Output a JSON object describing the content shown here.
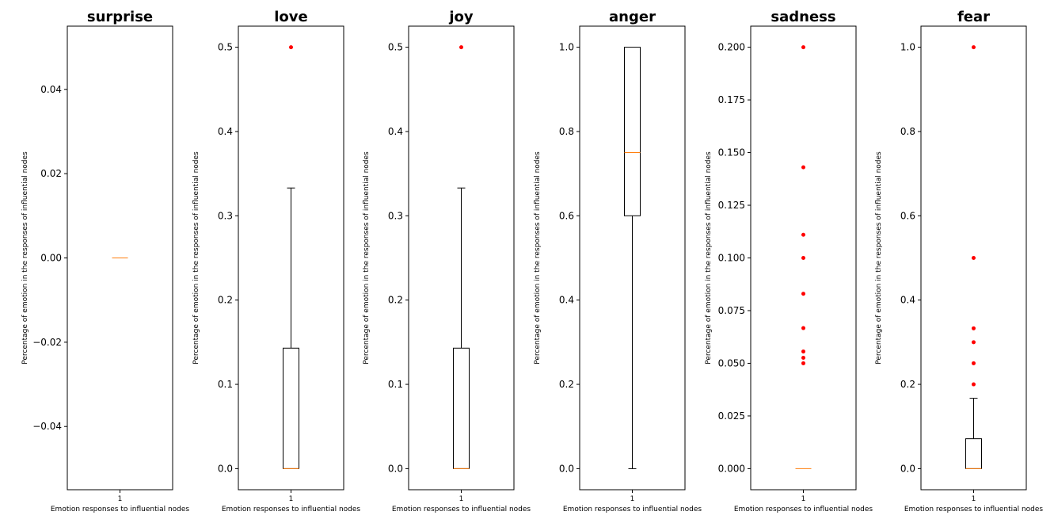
{
  "chart_data": [
    {
      "type": "box",
      "title": "surprise",
      "xlabel": "Emotion responses to influential nodes",
      "ylabel": "Percentage of emotion in the responses of influential nodes",
      "categories": [
        "1"
      ],
      "ylim": [
        -0.055,
        0.055
      ],
      "yticks": [
        -0.04,
        -0.02,
        0.0,
        0.02,
        0.04
      ],
      "ytick_labels": [
        "−0.04",
        "−0.02",
        "0.00",
        "0.02",
        "0.04"
      ],
      "box": {
        "whisker_low": 0,
        "q1": 0,
        "median": 0,
        "q3": 0,
        "whisker_high": 0
      },
      "outliers": []
    },
    {
      "type": "box",
      "title": "love",
      "xlabel": "Emotion responses to influential nodes",
      "ylabel": "Percentage of emotion in the responses of influential nodes",
      "categories": [
        "1"
      ],
      "ylim": [
        -0.025,
        0.525
      ],
      "yticks": [
        0.0,
        0.1,
        0.2,
        0.3,
        0.4,
        0.5
      ],
      "ytick_labels": [
        "0.0",
        "0.1",
        "0.2",
        "0.3",
        "0.4",
        "0.5"
      ],
      "box": {
        "whisker_low": 0,
        "q1": 0,
        "median": 0,
        "q3": 0.143,
        "whisker_high": 0.333
      },
      "outliers": [
        0.5
      ]
    },
    {
      "type": "box",
      "title": "joy",
      "xlabel": "Emotion responses to influential nodes",
      "ylabel": "Percentage of emotion in the responses of influential nodes",
      "categories": [
        "1"
      ],
      "ylim": [
        -0.025,
        0.525
      ],
      "yticks": [
        0.0,
        0.1,
        0.2,
        0.3,
        0.4,
        0.5
      ],
      "ytick_labels": [
        "0.0",
        "0.1",
        "0.2",
        "0.3",
        "0.4",
        "0.5"
      ],
      "box": {
        "whisker_low": 0,
        "q1": 0,
        "median": 0,
        "q3": 0.143,
        "whisker_high": 0.333
      },
      "outliers": [
        0.5
      ]
    },
    {
      "type": "box",
      "title": "anger",
      "xlabel": "Emotion responses to influential nodes",
      "ylabel": "Percentage of emotion in the responses of influential nodes",
      "categories": [
        "1"
      ],
      "ylim": [
        -0.05,
        1.05
      ],
      "yticks": [
        0.0,
        0.2,
        0.4,
        0.6,
        0.8,
        1.0
      ],
      "ytick_labels": [
        "0.0",
        "0.2",
        "0.4",
        "0.6",
        "0.8",
        "1.0"
      ],
      "box": {
        "whisker_low": 0,
        "q1": 0.6,
        "median": 0.75,
        "q3": 1.0,
        "whisker_high": 1.0
      },
      "outliers": []
    },
    {
      "type": "box",
      "title": "sadness",
      "xlabel": "Emotion responses to influential nodes",
      "ylabel": "Percentage of emotion in the responses of influential nodes",
      "categories": [
        "1"
      ],
      "ylim": [
        -0.01,
        0.21
      ],
      "yticks": [
        0.0,
        0.025,
        0.05,
        0.075,
        0.1,
        0.125,
        0.15,
        0.175,
        0.2
      ],
      "ytick_labels": [
        "0.000",
        "0.025",
        "0.050",
        "0.075",
        "0.100",
        "0.125",
        "0.150",
        "0.175",
        "0.200"
      ],
      "box": {
        "whisker_low": 0,
        "q1": 0,
        "median": 0,
        "q3": 0,
        "whisker_high": 0
      },
      "outliers": [
        0.2,
        0.143,
        0.111,
        0.1,
        0.083,
        0.0667,
        0.0556,
        0.0526,
        0.05
      ]
    },
    {
      "type": "box",
      "title": "fear",
      "xlabel": "Emotion responses to influential nodes",
      "ylabel": "Percentage of emotion in the responses of influential nodes",
      "categories": [
        "1"
      ],
      "ylim": [
        -0.05,
        1.05
      ],
      "yticks": [
        0.0,
        0.2,
        0.4,
        0.6,
        0.8,
        1.0
      ],
      "ytick_labels": [
        "0.0",
        "0.2",
        "0.4",
        "0.6",
        "0.8",
        "1.0"
      ],
      "box": {
        "whisker_low": 0,
        "q1": 0,
        "median": 0,
        "q3": 0.071,
        "whisker_high": 0.167
      },
      "outliers": [
        1.0,
        0.5,
        0.333,
        0.3,
        0.25,
        0.2
      ]
    }
  ],
  "colors": {
    "box": "#000000",
    "median": "#ff7f0e",
    "outlier": "#ff0000",
    "frame": "#000000"
  }
}
